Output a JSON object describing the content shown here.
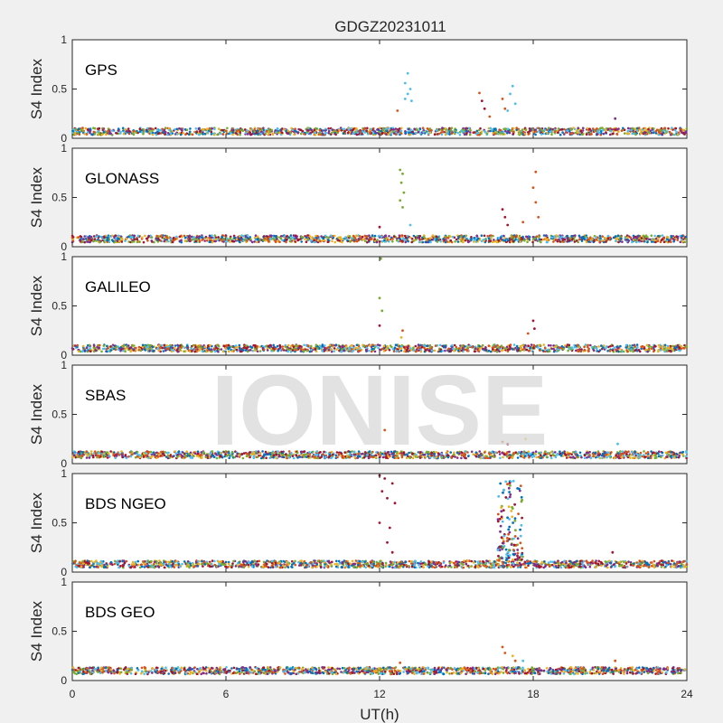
{
  "chart_data": {
    "type": "scatter",
    "title": "GDGZ20231011",
    "watermark": "IONISE",
    "xlabel": "UT(h)",
    "xlim": [
      0,
      24
    ],
    "xticks": [
      0,
      6,
      12,
      18,
      24
    ],
    "ylabel": "S4 Index",
    "ylim": [
      0,
      1
    ],
    "yticks": [
      0,
      0.5,
      1
    ],
    "ytick_labels": [
      "0",
      "0.5",
      "1"
    ],
    "colors": [
      "#0072BD",
      "#D95319",
      "#EDB120",
      "#7E2F8E",
      "#77AC30",
      "#4DBEEE",
      "#A2142F"
    ],
    "panels": [
      {
        "name": "GPS",
        "baseline": 0.07,
        "spikes": [
          {
            "x": 13.1,
            "y": 0.66,
            "color": 5
          },
          {
            "x": 13.0,
            "y": 0.56,
            "color": 5
          },
          {
            "x": 13.2,
            "y": 0.5,
            "color": 5
          },
          {
            "x": 13.1,
            "y": 0.45,
            "color": 5
          },
          {
            "x": 13.0,
            "y": 0.4,
            "color": 5
          },
          {
            "x": 13.25,
            "y": 0.38,
            "color": 5
          },
          {
            "x": 12.7,
            "y": 0.28,
            "color": 1
          },
          {
            "x": 15.9,
            "y": 0.46,
            "color": 1
          },
          {
            "x": 16.0,
            "y": 0.38,
            "color": 6
          },
          {
            "x": 16.1,
            "y": 0.3,
            "color": 6
          },
          {
            "x": 16.3,
            "y": 0.22,
            "color": 1
          },
          {
            "x": 16.8,
            "y": 0.4,
            "color": 1
          },
          {
            "x": 16.9,
            "y": 0.3,
            "color": 1
          },
          {
            "x": 17.2,
            "y": 0.53,
            "color": 5
          },
          {
            "x": 17.1,
            "y": 0.45,
            "color": 5
          },
          {
            "x": 17.3,
            "y": 0.35,
            "color": 5
          },
          {
            "x": 17.0,
            "y": 0.28,
            "color": 5
          },
          {
            "x": 21.2,
            "y": 0.2,
            "color": 3
          }
        ]
      },
      {
        "name": "GLONASS",
        "baseline": 0.08,
        "spikes": [
          {
            "x": 12.8,
            "y": 0.78,
            "color": 4
          },
          {
            "x": 12.9,
            "y": 0.74,
            "color": 4
          },
          {
            "x": 12.85,
            "y": 0.65,
            "color": 4
          },
          {
            "x": 12.95,
            "y": 0.55,
            "color": 4
          },
          {
            "x": 12.8,
            "y": 0.47,
            "color": 4
          },
          {
            "x": 12.9,
            "y": 0.4,
            "color": 4
          },
          {
            "x": 13.2,
            "y": 0.22,
            "color": 5
          },
          {
            "x": 12.0,
            "y": 0.2,
            "color": 6
          },
          {
            "x": 16.8,
            "y": 0.38,
            "color": 6
          },
          {
            "x": 16.9,
            "y": 0.3,
            "color": 6
          },
          {
            "x": 17.0,
            "y": 0.22,
            "color": 6
          },
          {
            "x": 17.6,
            "y": 0.25,
            "color": 1
          },
          {
            "x": 18.1,
            "y": 0.76,
            "color": 1
          },
          {
            "x": 18.0,
            "y": 0.6,
            "color": 1
          },
          {
            "x": 18.1,
            "y": 0.45,
            "color": 1
          },
          {
            "x": 18.2,
            "y": 0.3,
            "color": 1
          }
        ]
      },
      {
        "name": "GALILEO",
        "baseline": 0.07,
        "spikes": [
          {
            "x": 12.05,
            "y": 0.98,
            "color": 4
          },
          {
            "x": 12.0,
            "y": 0.58,
            "color": 4
          },
          {
            "x": 12.1,
            "y": 0.45,
            "color": 4
          },
          {
            "x": 12.0,
            "y": 0.3,
            "color": 6
          },
          {
            "x": 12.9,
            "y": 0.25,
            "color": 1
          },
          {
            "x": 12.85,
            "y": 0.18,
            "color": 2
          },
          {
            "x": 18.0,
            "y": 0.35,
            "color": 6
          },
          {
            "x": 18.05,
            "y": 0.27,
            "color": 6
          },
          {
            "x": 17.8,
            "y": 0.22,
            "color": 1
          }
        ]
      },
      {
        "name": "SBAS",
        "baseline": 0.09,
        "spikes": [
          {
            "x": 12.2,
            "y": 0.34,
            "color": 1
          },
          {
            "x": 16.8,
            "y": 0.22,
            "color": 1
          },
          {
            "x": 17.0,
            "y": 0.2,
            "color": 6
          },
          {
            "x": 17.7,
            "y": 0.25,
            "color": 2
          },
          {
            "x": 21.3,
            "y": 0.2,
            "color": 5
          }
        ]
      },
      {
        "name": "BDS NGEO",
        "baseline": 0.08,
        "spikes": [
          {
            "x": 12.0,
            "y": 0.98,
            "color": 6
          },
          {
            "x": 12.2,
            "y": 0.95,
            "color": 6
          },
          {
            "x": 12.5,
            "y": 0.9,
            "color": 6
          },
          {
            "x": 12.1,
            "y": 0.82,
            "color": 6
          },
          {
            "x": 12.3,
            "y": 0.75,
            "color": 6
          },
          {
            "x": 12.6,
            "y": 0.7,
            "color": 6
          },
          {
            "x": 12.0,
            "y": 0.5,
            "color": 6
          },
          {
            "x": 12.4,
            "y": 0.45,
            "color": 6
          },
          {
            "x": 12.3,
            "y": 0.3,
            "color": 6
          },
          {
            "x": 12.5,
            "y": 0.2,
            "color": 6
          },
          {
            "x": 21.1,
            "y": 0.2,
            "color": 6
          }
        ],
        "cluster": {
          "x_range": [
            16.6,
            17.6
          ],
          "y_range": [
            0.12,
            0.95
          ],
          "count": 140
        }
      },
      {
        "name": "BDS GEO",
        "baseline": 0.1,
        "spikes": [
          {
            "x": 16.8,
            "y": 0.34,
            "color": 1
          },
          {
            "x": 16.9,
            "y": 0.28,
            "color": 1
          },
          {
            "x": 17.2,
            "y": 0.25,
            "color": 2
          },
          {
            "x": 17.3,
            "y": 0.2,
            "color": 1
          },
          {
            "x": 17.6,
            "y": 0.2,
            "color": 5
          },
          {
            "x": 12.8,
            "y": 0.18,
            "color": 1
          },
          {
            "x": 21.2,
            "y": 0.2,
            "color": 1
          }
        ]
      }
    ]
  }
}
